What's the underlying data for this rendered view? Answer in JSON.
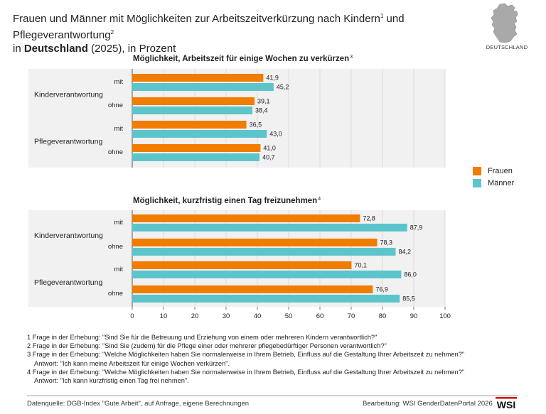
{
  "header": {
    "title_line1_a": "Frauen und Männer mit Möglichkeiten zur Arbeitszeitverkürzung nach Kindern",
    "sup1": "1",
    "title_line1_b": " und Pflegeverantwortung",
    "sup2": "2",
    "title_line2_a": "in ",
    "title_line2_bold": "Deutschland",
    "title_line2_b": " (2025), in Prozent",
    "map_label": "DEUTSCHLAND"
  },
  "colors": {
    "frauen": "#f07c00",
    "maenner": "#5cc5cc",
    "panel_bg": "#f1f1f1"
  },
  "legend": [
    {
      "name": "Frauen",
      "color": "#f07c00"
    },
    {
      "name": "Männer",
      "color": "#5cc5cc"
    }
  ],
  "chart_data": [
    {
      "type": "bar",
      "orientation": "horizontal",
      "title": "Möglichkeit, Arbeitszeit für einige Wochen zu verkürzen",
      "title_sup": "3",
      "groups": [
        "Kinderverantwortung",
        "Pflegeverantwortung"
      ],
      "subgroups": [
        "mit",
        "ohne"
      ],
      "series": [
        {
          "name": "Frauen",
          "values": [
            41.9,
            39.1,
            36.5,
            41.0
          ],
          "labels": [
            "41,9",
            "39,1",
            "36,5",
            "41,0"
          ]
        },
        {
          "name": "Männer",
          "values": [
            45.2,
            38.4,
            43.0,
            40.7
          ],
          "labels": [
            "45,2",
            "38,4",
            "43,0",
            "40,7"
          ]
        }
      ],
      "xlim": [
        0,
        100
      ]
    },
    {
      "type": "bar",
      "orientation": "horizontal",
      "title": "Möglichkeit, kurzfristig einen Tag freizunehmen",
      "title_sup": "4",
      "groups": [
        "Kinderverantwortung",
        "Pflegeverantwortung"
      ],
      "subgroups": [
        "mit",
        "ohne"
      ],
      "series": [
        {
          "name": "Frauen",
          "values": [
            72.8,
            78.3,
            70.1,
            76.9
          ],
          "labels": [
            "72,8",
            "78,3",
            "70,1",
            "76,9"
          ]
        },
        {
          "name": "Männer",
          "values": [
            87.9,
            84.2,
            86.0,
            85.5
          ],
          "labels": [
            "87,9",
            "84,2",
            "86,0",
            "85,5"
          ]
        }
      ],
      "xlim": [
        0,
        100
      ],
      "xticks": [
        "0",
        "10",
        "20",
        "30",
        "40",
        "50",
        "60",
        "70",
        "80",
        "90",
        "100"
      ]
    }
  ],
  "footnotes": {
    "fn1": "1 Frage in der Erhebung: \"Sind Sie für die Betreuung und Erziehung von einem oder mehreren Kindern verantwortlich?\"",
    "fn2": "2 Frage in der Erhebung: \"Sind Sie (zudem) für die Pflege einer oder mehrerer pflegebedürftiger Personen verantwortlich?\"",
    "fn3a": "3 Frage in der Erhebung: \"Welche Möglichkeiten haben Sie normalerweise in Ihrem Betrieb, Einfluss auf die Gestaltung Ihrer Arbeitszeit zu nehmen?\"",
    "fn3b": "Antwort: \"Ich kann meine Arbeitszeit für einige Wochen verkürzen\".",
    "fn4a": "4 Frage in der Erhebung: \"Welche Möglichkeiten haben Sie normalerweise in Ihrem Betrieb, Einfluss auf die Gestaltung Ihrer Arbeitszeit zu nehmen?\"",
    "fn4b": "Antwort: \"Ich kann kurzfristig einen Tag frei nehmen\"."
  },
  "footer": {
    "source": "Datenquelle: DGB-Index \"Gute Arbeit\", auf Anfrage, eigene Berechnungen",
    "credit": "Bearbeitung: WSI GenderDatenPortal 2026",
    "logo_text": "WSI"
  }
}
